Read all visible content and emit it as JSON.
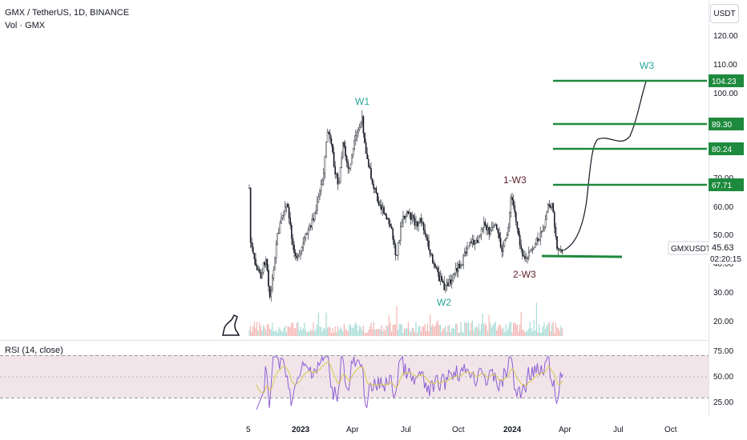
{
  "header": {
    "symbol_title": "GMX / TetherUS, 1D, BINANCE",
    "volume_label": "Vol · GMX",
    "currency": "USDT"
  },
  "indicator": {
    "label": "RSI (14, close)"
  },
  "price_axis": {
    "ticks": [
      "120.00",
      "110.00",
      "100.00",
      "70.00",
      "60.00",
      "50.00",
      "40.00",
      "30.00",
      "20.00"
    ],
    "levels": [
      {
        "value": "104.23",
        "color": "#1e8a3e"
      },
      {
        "value": "89.30",
        "color": "#1e8a3e"
      },
      {
        "value": "80.24",
        "color": "#1e8a3e"
      },
      {
        "value": "67.71",
        "color": "#1e8a3e"
      }
    ],
    "current": {
      "symbol": "GMXUSDT",
      "price": "45.63",
      "countdown": "02:20:15"
    }
  },
  "rsi_axis": {
    "ticks": [
      "75.00",
      "50.00",
      "25.00"
    ]
  },
  "time_axis": {
    "labels": [
      "5",
      "2023",
      "Apr",
      "Jul",
      "Oct",
      "2024",
      "Apr",
      "Jul",
      "Oct"
    ]
  },
  "wave_labels": [
    {
      "text": "W1",
      "color": "#26a69a"
    },
    {
      "text": "W2",
      "color": "#26a69a"
    },
    {
      "text": "W3",
      "color": "#26a69a"
    },
    {
      "text": "1-W3",
      "color": "#5d1f2c"
    },
    {
      "text": "2-W3",
      "color": "#5d1f2c"
    }
  ],
  "colors": {
    "up": "#26a69a",
    "down": "#ef5350",
    "candle": "#131722",
    "level_line": "#1e8a3e",
    "rsi_line": "#8e5fd4",
    "rsi_ma": "#d7c84a",
    "rsi_band": "#f0e6ec"
  }
}
